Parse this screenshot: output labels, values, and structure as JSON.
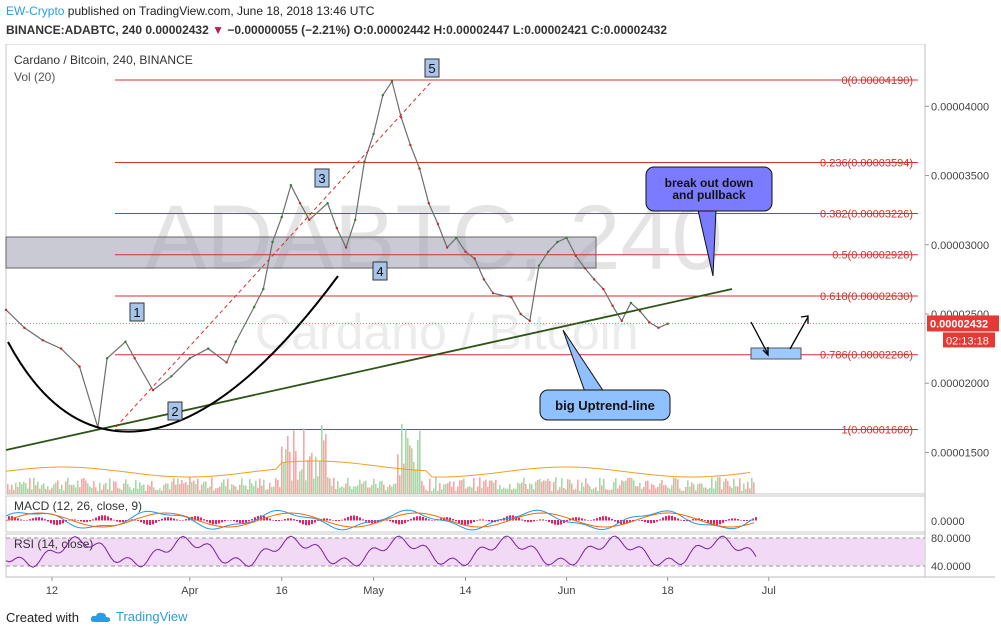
{
  "header": {
    "author": "EW-Crypto",
    "published_text": " published on TradingView.com, June 18, 2018 13:46 UTC",
    "symbol": "BINANCE:ADABTC, 240",
    "last": "0.00002432",
    "change": "−0.00000055 (−2.21%)",
    "ohlc": "O:0.00002442 H:0.00002447 L:0.00002421 C:0.00002432"
  },
  "footer": {
    "created_with": "Created with",
    "brand": "TradingView"
  },
  "colors": {
    "fib": "#d32f2f",
    "trend": "#2e5416",
    "up": "#2e7d32",
    "down": "#c62828",
    "accent": "#2b9de0",
    "macd": "#2196f3",
    "signal": "#ef6c00",
    "hist": "#e91e63",
    "rsi": "#7b1fa2",
    "box_blue": "#7b7bff",
    "box_light": "#8fc0ff",
    "zone": "#9e9eb0"
  },
  "chart_data": {
    "type": "line",
    "title": "Cardano / Bitcoin, 240, BINANCE",
    "volume_label": "Vol (20)",
    "watermark": "ADABTC, 240",
    "watermark_sub": "Cardano / Bitcoin",
    "ylim": [
      1.2e-05,
      4.45e-05
    ],
    "y_ticks": [
      "0.00001500",
      "0.00002000",
      "0.00002500",
      "0.00003000",
      "0.00003500",
      "0.00004000"
    ],
    "y_tick_values": [
      1.5e-05,
      2e-05,
      2.5e-05,
      3e-05,
      3.5e-05,
      4e-05
    ],
    "x_ticks": [
      "12",
      "Apr",
      "16",
      "May",
      "14",
      "Jun",
      "18",
      "Jul"
    ],
    "x_tick_values": [
      0.05,
      0.2,
      0.3,
      0.4,
      0.5,
      0.61,
      0.72,
      0.83
    ],
    "price_series": {
      "x": [
        0.0,
        0.02,
        0.04,
        0.06,
        0.08,
        0.1,
        0.11,
        0.13,
        0.14,
        0.16,
        0.18,
        0.2,
        0.22,
        0.24,
        0.25,
        0.27,
        0.28,
        0.29,
        0.3,
        0.31,
        0.32,
        0.33,
        0.35,
        0.36,
        0.37,
        0.38,
        0.39,
        0.4,
        0.41,
        0.42,
        0.43,
        0.44,
        0.45,
        0.46,
        0.47,
        0.48,
        0.49,
        0.5,
        0.51,
        0.52,
        0.53,
        0.55,
        0.56,
        0.57,
        0.58,
        0.59,
        0.6,
        0.61,
        0.62,
        0.63,
        0.64,
        0.65,
        0.66,
        0.67,
        0.68,
        0.69,
        0.7,
        0.71,
        0.72
      ],
      "y": [
        2.53e-05,
        2.4e-05,
        2.31e-05,
        2.25e-05,
        2.12e-05,
        1.68e-05,
        2.18e-05,
        2.3e-05,
        2.18e-05,
        1.95e-05,
        2.05e-05,
        2.18e-05,
        2.25e-05,
        2.15e-05,
        2.3e-05,
        2.55e-05,
        2.68e-05,
        3.02e-05,
        3.2e-05,
        3.43e-05,
        3.3e-05,
        3.18e-05,
        3.3e-05,
        3.12e-05,
        2.98e-05,
        3.18e-05,
        3.6e-05,
        3.8e-05,
        4.08e-05,
        4.18e-05,
        3.92e-05,
        3.72e-05,
        3.55e-05,
        3.3e-05,
        3.15e-05,
        2.98e-05,
        3.05e-05,
        2.95e-05,
        2.9e-05,
        2.75e-05,
        2.65e-05,
        2.62e-05,
        2.5e-05,
        2.45e-05,
        2.85e-05,
        2.95e-05,
        3.02e-05,
        3.05e-05,
        2.92e-05,
        2.83e-05,
        2.75e-05,
        2.68e-05,
        2.56e-05,
        2.45e-05,
        2.58e-05,
        2.52e-05,
        2.44e-05,
        2.4e-05,
        2.43e-05
      ]
    },
    "fib_levels": [
      {
        "label": "0(0.00004190)",
        "value": 4.19e-05
      },
      {
        "label": "0.236(0.00003594)",
        "value": 3.594e-05
      },
      {
        "label": "0.382(0.00003226)",
        "value": 3.226e-05
      },
      {
        "label": "0.5(0.00002928)",
        "value": 2.928e-05
      },
      {
        "label": "0.618(0.00002630)",
        "value": 2.63e-05
      },
      {
        "label": "0.786(0.00002206)",
        "value": 2.206e-05
      },
      {
        "label": "1(0.00001666)",
        "value": 1.666e-05
      }
    ],
    "waves": [
      "1",
      "2",
      "3",
      "4",
      "5"
    ],
    "annotations": {
      "top": "break out down and pullback",
      "bottom": "big Uptrend-line"
    },
    "last_price_label": "0.00002432",
    "countdown_label": "02:13:18",
    "macd": {
      "label": "MACD (12, 26, close, 9)",
      "tick": "0.0000"
    },
    "rsi": {
      "label": "RSI (14, close)",
      "ticks": [
        "80.0000",
        "40.0000"
      ],
      "overbought": 80,
      "oversold": 40
    }
  }
}
